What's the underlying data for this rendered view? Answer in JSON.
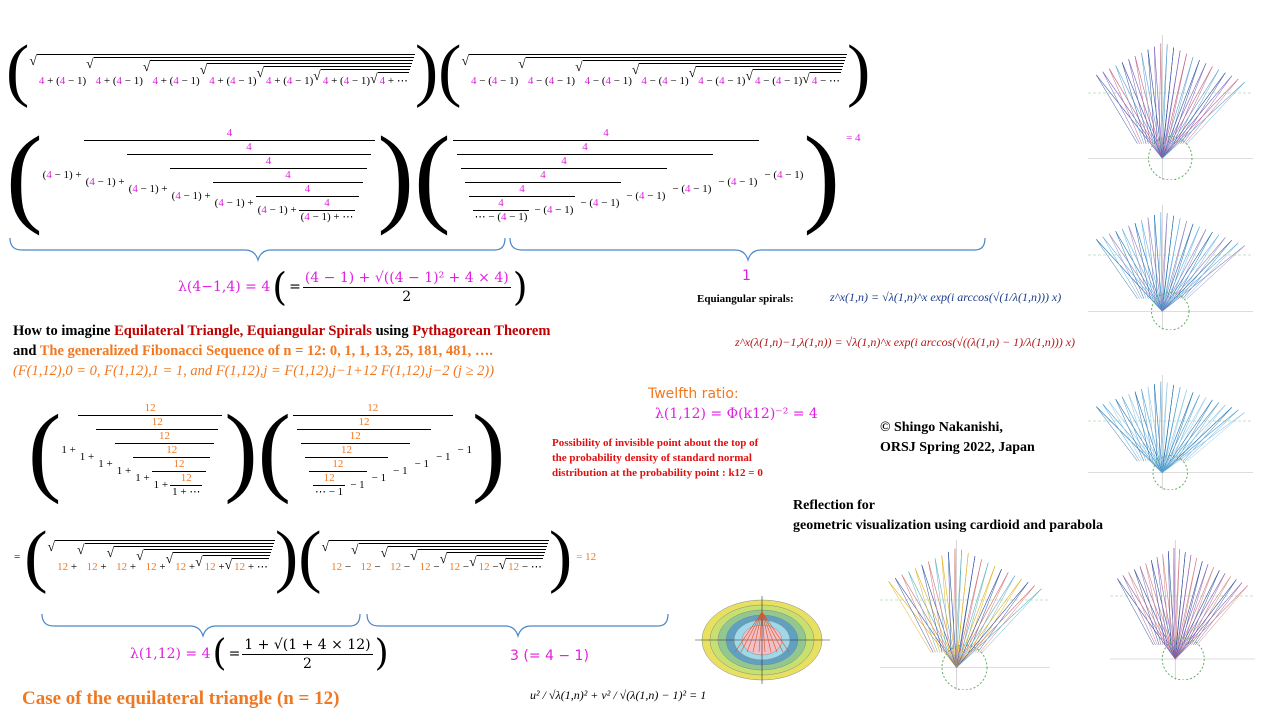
{
  "upper": {
    "radical_plus": {
      "term": "4 + (4 − 1)",
      "depth": 6,
      "tail": "4 + ⋯",
      "hl": "4"
    },
    "radical_minus": {
      "term": "4 − (4 − 1)",
      "depth": 6,
      "tail": "4 − ⋯",
      "hl": "4"
    },
    "cfrac_plus": {
      "base": "(4 − 1) +",
      "num": "4",
      "depth": 6,
      "tail": "(4 − 1) + ⋯",
      "hl": "4"
    },
    "cfrac_minus": {
      "num": "4",
      "sub": "− (4 − 1)",
      "depth": 6,
      "tail": "⋯ − (4 − 1)",
      "hl": "4"
    },
    "equals": "= 4",
    "brace_right_label": "1",
    "lambda_lhs": "λ(4−1,4) = 4",
    "lambda_num": "(4 − 1) + √((4 − 1)² + 4 × 4)",
    "lambda_den": "2"
  },
  "spirals": {
    "label": "Equiangular  spirals:",
    "eq1": "z^x(1,n) = √λ(1,n)^x exp(i arccos(√(1/λ(1,n))) x)",
    "eq2": "z^x(λ(1,n)−1,λ(1,n)) = √λ(1,n)^x exp(i arccos(√((λ(1,n) − 1)/λ(1,n))) x)"
  },
  "heading": {
    "line1_a": "How to imagine ",
    "line1_b": "Equilateral  Triangle,  Equiangular  Spirals",
    "line1_c": " using ",
    "line1_d": "Pythagorean  Theorem",
    "line2_a": "and ",
    "line2_b": "The generalized  Fibonacci  Sequence of  n = 12:  0, 1, 1, 13, 25, 181, 481, ….",
    "line3": "(F(1,12),0 = 0, F(1,12),1 = 1, and  F(1,12),j = F(1,12),j−1+12 F(1,12),j−2  (j ≥ 2))"
  },
  "twelfth": {
    "label": "Twelfth ratio:",
    "formula": "λ(1,12) = Φ(k12)⁻² = 4"
  },
  "possibility": [
    "Possibility of invisible point about  the top of",
    "the probability  density of standard  normal",
    "distribution  at the probability  point : k12 = 0"
  ],
  "copyright": [
    "© Shingo  Nakanishi,",
    "ORSJ Spring  2022, Japan"
  ],
  "reflection": [
    "Reflection for",
    "geometric visualization  using cardioid  and parabola"
  ],
  "lower": {
    "cfrac_plus": {
      "base": "1 +",
      "num": "12",
      "depth": 6,
      "tail": "1 + ⋯",
      "hl": "12"
    },
    "cfrac_minus": {
      "num": "12",
      "sub": "− 1",
      "depth": 6,
      "tail": "⋯ − 1",
      "hl": "12"
    },
    "eq_sign": "=",
    "radical_plus": {
      "term": "12 +",
      "depth": 6,
      "tail": "12 + ⋯",
      "hl": "12"
    },
    "radical_minus": {
      "term": "12 −",
      "depth": 6,
      "tail": "12 − ⋯",
      "hl": "12"
    },
    "equals": "= 12",
    "lambda_lhs": "λ(1,12) = 4",
    "lambda_num": "1 + √(1 + 4 × 12)",
    "lambda_den": "2",
    "brace_right_label": "3 (= 4 − 1)",
    "ellipse_eq": "u² / √λ(1,n)² + v² / √(λ(1,n) − 1)² = 1"
  },
  "case_title": "Case of the equilateral  triangle  (n = 12)",
  "colors": {
    "magenta": "#e020e0",
    "orange": "#f07820",
    "red": "#c00000",
    "brace": "#4a86c8"
  }
}
